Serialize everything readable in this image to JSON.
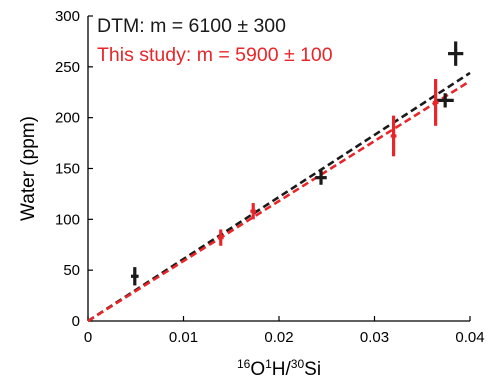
{
  "chart_data": {
    "type": "scatter",
    "xlabel": {
      "prefix": "",
      "sup1": "16",
      "mid1": "O",
      "sup2": "1",
      "mid2": "H/",
      "sup3": "30",
      "tail": "Si"
    },
    "ylabel": "Water (ppm)",
    "xlim": [
      0,
      0.04
    ],
    "ylim": [
      0,
      300
    ],
    "x_ticks": [
      0,
      0.01,
      0.02,
      0.03,
      0.04
    ],
    "x_tick_labels": [
      "0",
      "0.01",
      "0.02",
      "0.03",
      "0.04"
    ],
    "y_ticks": [
      0,
      50,
      100,
      150,
      200,
      250,
      300
    ],
    "y_tick_labels": [
      "0",
      "50",
      "100",
      "150",
      "200",
      "250",
      "300"
    ],
    "grid": false,
    "legend_position": "top-left",
    "series": [
      {
        "name": "DTM: m = 6100 ± 300",
        "color": "#1a1a1a",
        "fit_slope": 6100,
        "points": [
          {
            "x": 0.0049,
            "y": 44,
            "xerr": 0.0004,
            "yerr": 9
          },
          {
            "x": 0.0244,
            "y": 141,
            "xerr": 0.0006,
            "yerr": 7
          },
          {
            "x": 0.0374,
            "y": 217,
            "xerr": 0.0009,
            "yerr": 7
          },
          {
            "x": 0.0385,
            "y": 263,
            "xerr": 0.0008,
            "yerr": 12
          }
        ]
      },
      {
        "name": "This study: m = 5900 ± 100",
        "color": "#e8262a",
        "fit_slope": 5900,
        "points": [
          {
            "x": 0.0139,
            "y": 82,
            "xerr": 0.0003,
            "yerr": 8
          },
          {
            "x": 0.0173,
            "y": 108,
            "xerr": 0.0003,
            "yerr": 8
          },
          {
            "x": 0.032,
            "y": 182,
            "xerr": 0.0003,
            "yerr": 20
          },
          {
            "x": 0.0364,
            "y": 215,
            "xerr": 0.0003,
            "yerr": 23
          }
        ]
      }
    ]
  }
}
